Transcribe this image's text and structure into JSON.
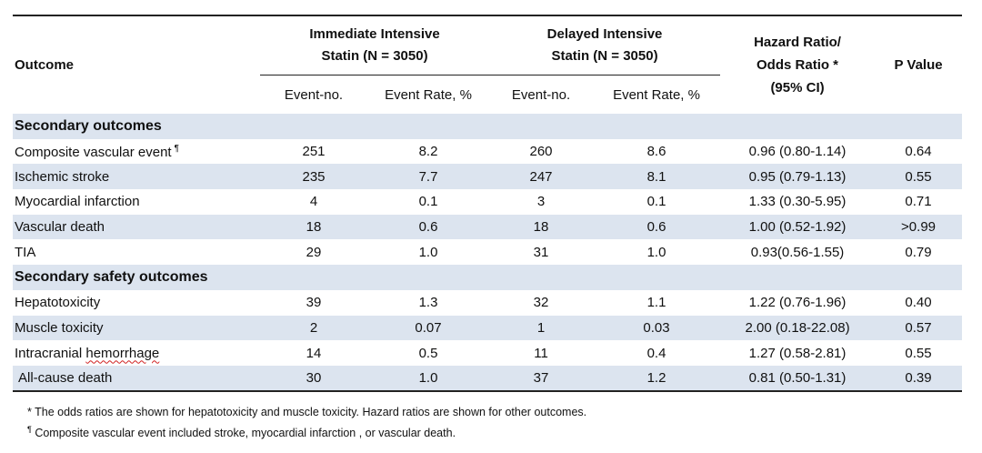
{
  "header": {
    "outcome": "Outcome",
    "group1_line1": "Immediate Intensive",
    "group1_line2": "Statin (N = 3050)",
    "group2_line1": "Delayed Intensive",
    "group2_line2": "Statin (N = 3050)",
    "ratio_line1": "Hazard Ratio/",
    "ratio_line2": "Odds Ratio *",
    "ratio_line3": "(95% CI)",
    "pvalue": "P Value",
    "sub_event_no": "Event-no.",
    "sub_event_rate": "Event Rate, %"
  },
  "sections": [
    {
      "title": "Secondary outcomes",
      "rows": [
        {
          "label": "Composite vascular event",
          "mark": "¶",
          "ev1": "251",
          "rate1": "8.2",
          "ev2": "260",
          "rate2": "8.6",
          "ratio": "0.96 (0.80-1.14)",
          "p": "0.64"
        },
        {
          "label": "Ischemic stroke",
          "ev1": "235",
          "rate1": "7.7",
          "ev2": "247",
          "rate2": "8.1",
          "ratio": "0.95 (0.79-1.13)",
          "p": "0.55"
        },
        {
          "label": "Myocardial infarction",
          "ev1": "4",
          "rate1": "0.1",
          "ev2": "3",
          "rate2": "0.1",
          "ratio": "1.33 (0.30-5.95)",
          "p": "0.71"
        },
        {
          "label": "Vascular death",
          "ev1": "18",
          "rate1": "0.6",
          "ev2": "18",
          "rate2": "0.6",
          "ratio": "1.00 (0.52-1.92)",
          "p": ">0.99"
        },
        {
          "label": "TIA",
          "ev1": "29",
          "rate1": "1.0",
          "ev2": "31",
          "rate2": "1.0",
          "ratio": "0.93(0.56-1.55)",
          "p": "0.79"
        }
      ]
    },
    {
      "title": "Secondary safety outcomes",
      "rows": [
        {
          "label": "Hepatotoxicity",
          "ev1": "39",
          "rate1": "1.3",
          "ev2": "32",
          "rate2": "1.1",
          "ratio": "1.22 (0.76-1.96)",
          "p": "0.40"
        },
        {
          "label": "Muscle toxicity",
          "ev1": "2",
          "rate1": "0.07",
          "ev2": "1",
          "rate2": "0.03",
          "ratio": "2.00 (0.18-22.08)",
          "p": "0.57"
        },
        {
          "label_pre": "Intracranial ",
          "label_flag": "hemorrhage",
          "ev1": "14",
          "rate1": "0.5",
          "ev2": "11",
          "rate2": "0.4",
          "ratio": "1.27 (0.58-2.81)",
          "p": "0.55"
        },
        {
          "label": "All-cause death",
          "ev1": "30",
          "rate1": "1.0",
          "ev2": "37",
          "rate2": "1.2",
          "ratio": "0.81 (0.50-1.31)",
          "p": "0.39"
        }
      ]
    }
  ],
  "footnotes": {
    "note1": "* The odds ratios are shown for hepatotoxicity and muscle toxicity. Hazard ratios are shown for other outcomes.",
    "note2_mark": "¶",
    "note2": " Composite vascular event included stroke, myocardial infarction , or vascular death."
  }
}
